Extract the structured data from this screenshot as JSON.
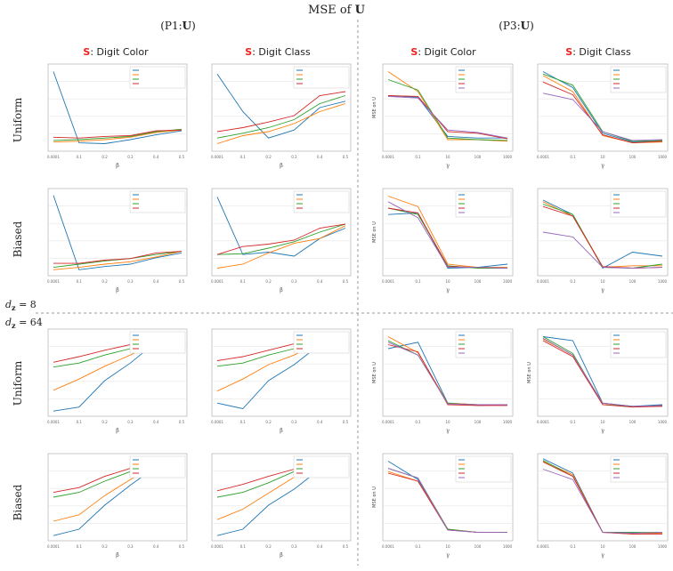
{
  "title": {
    "prefix": "MSE of ",
    "symbol": "U"
  },
  "sections": [
    {
      "prefix": "(P1:",
      "symbol": "U",
      "suffix": ")"
    },
    {
      "prefix": "(P3:",
      "symbol": "U",
      "suffix": ")"
    }
  ],
  "col_titles": [
    {
      "s": "S",
      "rest": ": Digit Color"
    },
    {
      "s": "S",
      "rest": ": Digit Class"
    },
    {
      "s": "S",
      "rest": ": Digit Color"
    },
    {
      "s": "S",
      "rest": ": Digit Class"
    }
  ],
  "row_labels": [
    "Uniform",
    "Biased",
    "Uniform",
    "Biased"
  ],
  "dz_labels": [
    {
      "pre": "d",
      "sub": "z",
      "post": " = 8"
    },
    {
      "pre": "d",
      "sub": "z",
      "post": " = 64"
    }
  ],
  "colors": {
    "series": [
      "#1f77b4",
      "#ff7f0e",
      "#2ca02c",
      "#d62728",
      "#9467bd"
    ],
    "red_accent": "#e8231e",
    "divider": "#999999"
  },
  "chart_data": [
    {
      "type": "line",
      "panel": "r1c1",
      "categories": [
        "0.0001",
        "0.1",
        "0.2",
        "0.3",
        "0.4",
        "0.5"
      ],
      "xlabel": "β",
      "ylim": [
        0,
        1
      ],
      "series": [
        {
          "values": [
            0.95,
            0.06,
            0.05,
            0.1,
            0.16,
            0.21
          ]
        },
        {
          "values": [
            0.07,
            0.08,
            0.1,
            0.13,
            0.19,
            0.22
          ]
        },
        {
          "values": [
            0.09,
            0.1,
            0.12,
            0.14,
            0.2,
            0.23
          ]
        },
        {
          "values": [
            0.13,
            0.12,
            0.14,
            0.15,
            0.21,
            0.22
          ]
        }
      ]
    },
    {
      "type": "line",
      "panel": "r1c2",
      "categories": [
        "0.0001",
        "0.1",
        "0.2",
        "0.3",
        "0.4",
        "0.5"
      ],
      "xlabel": "β",
      "ylim": [
        0,
        1
      ],
      "series": [
        {
          "values": [
            0.92,
            0.45,
            0.12,
            0.22,
            0.5,
            0.58
          ]
        },
        {
          "values": [
            0.05,
            0.15,
            0.2,
            0.3,
            0.45,
            0.55
          ]
        },
        {
          "values": [
            0.12,
            0.18,
            0.25,
            0.35,
            0.55,
            0.65
          ]
        },
        {
          "values": [
            0.2,
            0.25,
            0.32,
            0.4,
            0.65,
            0.7
          ]
        }
      ]
    },
    {
      "type": "line",
      "panel": "r1c3",
      "categories": [
        "0.0001",
        "0.1",
        "10",
        "100",
        "1000"
      ],
      "xlabel": "γ",
      "ylabel": "MSE on U",
      "ylim": [
        0,
        1
      ],
      "series": [
        {
          "values": [
            0.65,
            0.63,
            0.14,
            0.12,
            0.12
          ]
        },
        {
          "values": [
            0.95,
            0.7,
            0.1,
            0.1,
            0.08
          ]
        },
        {
          "values": [
            0.85,
            0.72,
            0.12,
            0.1,
            0.09
          ]
        },
        {
          "values": [
            0.65,
            0.64,
            0.2,
            0.18,
            0.11
          ]
        },
        {
          "values": [
            0.64,
            0.62,
            0.22,
            0.19,
            0.12
          ]
        }
      ]
    },
    {
      "type": "line",
      "panel": "r1c4",
      "categories": [
        "0.0001",
        "0.1",
        "10",
        "100",
        "1000"
      ],
      "xlabel": "γ",
      "ylim": [
        0,
        1
      ],
      "series": [
        {
          "values": [
            0.95,
            0.75,
            0.18,
            0.07,
            0.08
          ]
        },
        {
          "values": [
            0.9,
            0.7,
            0.15,
            0.06,
            0.07
          ]
        },
        {
          "values": [
            0.92,
            0.78,
            0.2,
            0.08,
            0.09
          ]
        },
        {
          "values": [
            0.82,
            0.66,
            0.16,
            0.06,
            0.08
          ]
        },
        {
          "values": [
            0.68,
            0.6,
            0.2,
            0.09,
            0.1
          ]
        }
      ]
    },
    {
      "type": "line",
      "panel": "r2c1",
      "categories": [
        "0.0001",
        "0.1",
        "0.2",
        "0.3",
        "0.4",
        "0.5"
      ],
      "xlabel": "β",
      "ylim": [
        0,
        1
      ],
      "series": [
        {
          "values": [
            0.96,
            0.03,
            0.07,
            0.1,
            0.18,
            0.24
          ]
        },
        {
          "values": [
            0.03,
            0.06,
            0.1,
            0.13,
            0.19,
            0.26
          ]
        },
        {
          "values": [
            0.06,
            0.1,
            0.14,
            0.17,
            0.22,
            0.26
          ]
        },
        {
          "values": [
            0.11,
            0.11,
            0.15,
            0.17,
            0.24,
            0.26
          ]
        }
      ]
    },
    {
      "type": "line",
      "panel": "r2c2",
      "categories": [
        "0.0001",
        "0.1",
        "0.2",
        "0.3",
        "0.4",
        "0.5"
      ],
      "xlabel": "β",
      "ylim": [
        0,
        1
      ],
      "series": [
        {
          "values": [
            0.94,
            0.22,
            0.25,
            0.2,
            0.42,
            0.55
          ]
        },
        {
          "values": [
            0.05,
            0.1,
            0.24,
            0.36,
            0.42,
            0.58
          ]
        },
        {
          "values": [
            0.22,
            0.23,
            0.3,
            0.38,
            0.5,
            0.6
          ]
        },
        {
          "values": [
            0.22,
            0.32,
            0.35,
            0.4,
            0.55,
            0.6
          ]
        }
      ]
    },
    {
      "type": "line",
      "panel": "r2c3",
      "categories": [
        "0.0001",
        "0.1",
        "10",
        "100",
        "1000"
      ],
      "xlabel": "γ",
      "ylabel": "MSE on U",
      "ylim": [
        0,
        1
      ],
      "series": [
        {
          "values": [
            0.72,
            0.74,
            0.05,
            0.06,
            0.1
          ]
        },
        {
          "values": [
            0.95,
            0.82,
            0.1,
            0.06,
            0.06
          ]
        },
        {
          "values": [
            0.8,
            0.72,
            0.08,
            0.05,
            0.05
          ]
        },
        {
          "values": [
            0.8,
            0.74,
            0.07,
            0.06,
            0.05
          ]
        },
        {
          "values": [
            0.88,
            0.68,
            0.06,
            0.06,
            0.05
          ]
        }
      ]
    },
    {
      "type": "line",
      "panel": "r2c4",
      "categories": [
        "0.0001",
        "0.1",
        "10",
        "100",
        "1000"
      ],
      "xlabel": "γ",
      "ylim": [
        0,
        1
      ],
      "series": [
        {
          "values": [
            0.9,
            0.72,
            0.05,
            0.25,
            0.2
          ]
        },
        {
          "values": [
            0.88,
            0.7,
            0.06,
            0.08,
            0.08
          ]
        },
        {
          "values": [
            0.85,
            0.72,
            0.06,
            0.05,
            0.1
          ]
        },
        {
          "values": [
            0.82,
            0.7,
            0.07,
            0.05,
            0.06
          ]
        },
        {
          "values": [
            0.5,
            0.44,
            0.06,
            0.05,
            0.06
          ]
        }
      ]
    },
    {
      "type": "line",
      "panel": "r3c1",
      "categories": [
        "0.0001",
        "0.1",
        "0.2",
        "0.3",
        "0.4",
        "0.5"
      ],
      "xlabel": "β",
      "ylim": [
        0,
        1
      ],
      "series": [
        {
          "values": [
            0.02,
            0.07,
            0.4,
            0.62,
            0.88,
            0.96
          ]
        },
        {
          "values": [
            0.28,
            0.42,
            0.58,
            0.72,
            0.88,
            0.94
          ]
        },
        {
          "values": [
            0.57,
            0.62,
            0.72,
            0.8,
            0.9,
            0.98
          ]
        },
        {
          "values": [
            0.63,
            0.7,
            0.78,
            0.85,
            0.94,
            0.98
          ]
        }
      ]
    },
    {
      "type": "line",
      "panel": "r3c2",
      "categories": [
        "0.0001",
        "0.1",
        "0.2",
        "0.3",
        "0.4",
        "0.5"
      ],
      "xlabel": "β",
      "ylim": [
        0,
        1
      ],
      "series": [
        {
          "values": [
            0.12,
            0.05,
            0.4,
            0.6,
            0.85,
            0.94
          ]
        },
        {
          "values": [
            0.27,
            0.42,
            0.6,
            0.72,
            0.88,
            0.96
          ]
        },
        {
          "values": [
            0.58,
            0.62,
            0.72,
            0.8,
            0.92,
            0.98
          ]
        },
        {
          "values": [
            0.65,
            0.7,
            0.78,
            0.86,
            0.95,
            1.0
          ]
        }
      ]
    },
    {
      "type": "line",
      "panel": "r3c3",
      "categories": [
        "0.0001",
        "0.1",
        "10",
        "100",
        "1000"
      ],
      "xlabel": "γ",
      "ylabel": "MSE on U",
      "ylim": [
        0,
        1
      ],
      "series": [
        {
          "values": [
            0.8,
            0.88,
            0.12,
            0.1,
            0.1
          ]
        },
        {
          "values": [
            0.95,
            0.75,
            0.12,
            0.1,
            0.1
          ]
        },
        {
          "values": [
            0.9,
            0.72,
            0.12,
            0.09,
            0.1
          ]
        },
        {
          "values": [
            0.85,
            0.76,
            0.1,
            0.09,
            0.09
          ]
        },
        {
          "values": [
            0.88,
            0.72,
            0.11,
            0.1,
            0.1
          ]
        }
      ]
    },
    {
      "type": "line",
      "panel": "r3c4",
      "categories": [
        "0.0001",
        "0.1",
        "10",
        "100",
        "1000"
      ],
      "xlabel": "γ",
      "ylabel": "MSE on U",
      "ylim": [
        0,
        1
      ],
      "series": [
        {
          "values": [
            0.95,
            0.9,
            0.12,
            0.08,
            0.1
          ]
        },
        {
          "values": [
            0.92,
            0.72,
            0.12,
            0.07,
            0.09
          ]
        },
        {
          "values": [
            0.95,
            0.74,
            0.1,
            0.08,
            0.08
          ]
        },
        {
          "values": [
            0.9,
            0.7,
            0.1,
            0.07,
            0.08
          ]
        },
        {
          "values": [
            0.93,
            0.72,
            0.12,
            0.08,
            0.09
          ]
        }
      ]
    },
    {
      "type": "line",
      "panel": "r4c1",
      "categories": [
        "0.0001",
        "0.1",
        "0.2",
        "0.3",
        "0.4",
        "0.5"
      ],
      "xlabel": "β",
      "ylim": [
        0,
        1
      ],
      "series": [
        {
          "values": [
            0.02,
            0.1,
            0.4,
            0.65,
            0.88,
            0.98
          ]
        },
        {
          "values": [
            0.2,
            0.28,
            0.52,
            0.72,
            0.9,
            0.96
          ]
        },
        {
          "values": [
            0.5,
            0.56,
            0.7,
            0.82,
            0.92,
            0.97
          ]
        },
        {
          "values": [
            0.56,
            0.62,
            0.76,
            0.86,
            0.94,
            1.0
          ]
        }
      ]
    },
    {
      "type": "line",
      "panel": "r4c2",
      "categories": [
        "0.0001",
        "0.1",
        "0.2",
        "0.3",
        "0.4",
        "0.5"
      ],
      "xlabel": "β",
      "ylim": [
        0,
        1
      ],
      "series": [
        {
          "values": [
            0.02,
            0.1,
            0.4,
            0.6,
            0.85,
            0.95
          ]
        },
        {
          "values": [
            0.22,
            0.35,
            0.55,
            0.75,
            0.9,
            0.98
          ]
        },
        {
          "values": [
            0.5,
            0.56,
            0.68,
            0.82,
            0.94,
            0.98
          ]
        },
        {
          "values": [
            0.58,
            0.66,
            0.76,
            0.85,
            0.95,
            1.0
          ]
        }
      ]
    },
    {
      "type": "line",
      "panel": "r4c3",
      "categories": [
        "0.0001",
        "0.1",
        "10",
        "100",
        "1000"
      ],
      "xlabel": "γ",
      "ylabel": "MSE on U",
      "ylim": [
        0,
        1
      ],
      "series": [
        {
          "values": [
            0.95,
            0.72,
            0.1,
            0.06,
            0.06
          ]
        },
        {
          "values": [
            0.82,
            0.7,
            0.1,
            0.06,
            0.06
          ]
        },
        {
          "values": [
            0.86,
            0.74,
            0.1,
            0.06,
            0.06
          ]
        },
        {
          "values": [
            0.8,
            0.7,
            0.09,
            0.06,
            0.06
          ]
        },
        {
          "values": [
            0.86,
            0.74,
            0.09,
            0.06,
            0.06
          ]
        }
      ]
    },
    {
      "type": "line",
      "panel": "r4c4",
      "categories": [
        "0.0001",
        "0.1",
        "10",
        "100",
        "1000"
      ],
      "xlabel": "γ",
      "ylim": [
        0,
        1
      ],
      "series": [
        {
          "values": [
            0.98,
            0.8,
            0.06,
            0.06,
            0.05
          ]
        },
        {
          "values": [
            0.95,
            0.78,
            0.06,
            0.04,
            0.05
          ]
        },
        {
          "values": [
            0.96,
            0.76,
            0.06,
            0.06,
            0.06
          ]
        },
        {
          "values": [
            0.94,
            0.76,
            0.06,
            0.04,
            0.04
          ]
        },
        {
          "values": [
            0.85,
            0.72,
            0.06,
            0.05,
            0.06
          ]
        }
      ]
    }
  ]
}
